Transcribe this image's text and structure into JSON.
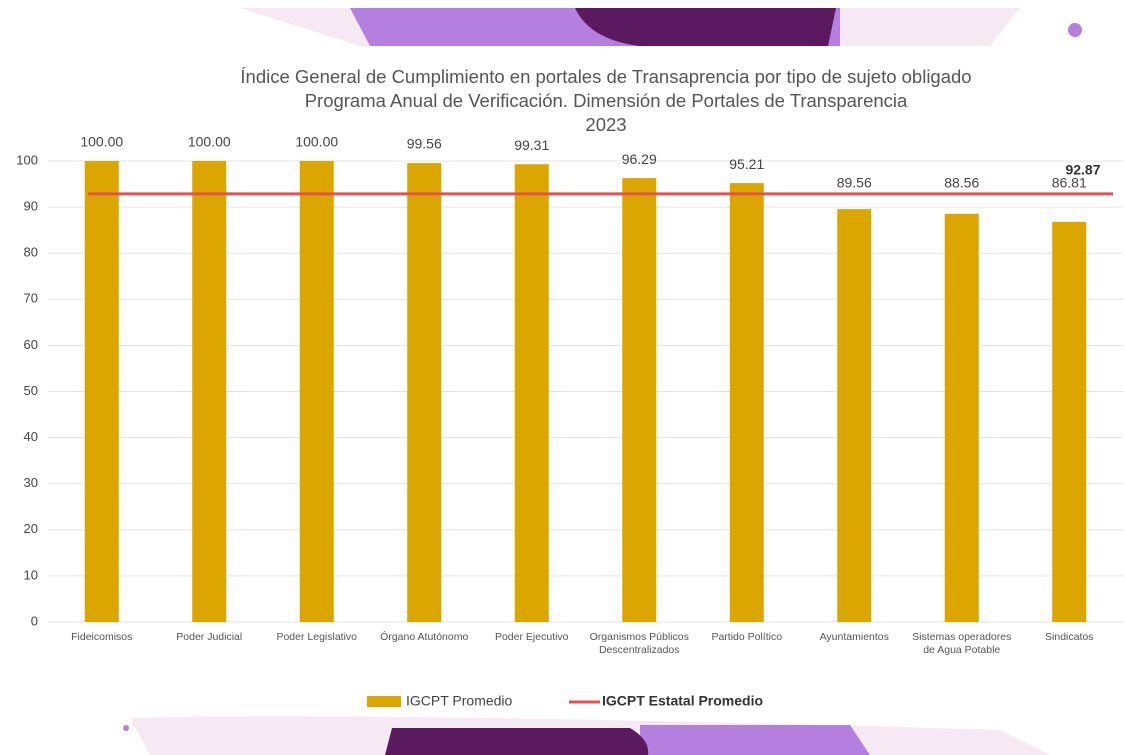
{
  "chart_data": {
    "type": "bar",
    "title": [
      "Índice General de Cumplimiento en portales de Transaprencia por tipo de sujeto obligado",
      "Programa Anual de Verificación. Dimensión de Portales de Transparencia",
      "2023"
    ],
    "categories": [
      "Fideicomisos",
      "Poder Judicial",
      "Poder Legislativo",
      "Órgano Atutónomo",
      "Poder Ejecutivo",
      "Organismos Públicos Descentralizados",
      "Partido Político",
      "Ayuntamientos",
      "Sistemas operadores de Agua Potable",
      "Sindicatos"
    ],
    "series": [
      {
        "name": "IGCPT Promedio",
        "color": "#dba600",
        "values": [
          100,
          100,
          100,
          99.56,
          99.31,
          96.29,
          95.21,
          89.56,
          88.56,
          86.81
        ],
        "value_labels": [
          "100.00",
          "100.00",
          "100.00",
          "99.56",
          "99.31",
          "96.29",
          "95.21",
          "89.56",
          "88.56",
          "86.81"
        ]
      }
    ],
    "reference_line": {
      "name": "IGCPT Estatal Promedio",
      "color": "#e8504f",
      "value": 92.87
    },
    "ylim": [
      0,
      100
    ],
    "yticks": [
      0,
      10,
      20,
      30,
      40,
      50,
      60,
      70,
      80,
      90,
      100
    ],
    "grid": true
  }
}
